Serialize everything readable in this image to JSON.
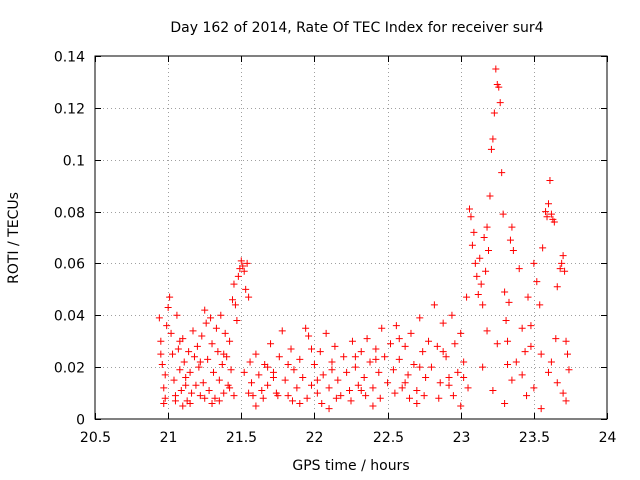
{
  "chart_data": {
    "type": "scatter",
    "title": "Day 162 of 2014, Rate Of TEC Index for receiver sur4",
    "xlabel": "GPS time / hours",
    "ylabel": "ROTI / TECUs",
    "xlim": [
      20.5,
      24
    ],
    "ylim": [
      0,
      0.14
    ],
    "xticks": [
      20.5,
      21,
      21.5,
      22,
      22.5,
      23,
      23.5,
      24
    ],
    "xtick_labels": [
      "20.5",
      "21",
      "21.5",
      "22",
      "22.5",
      "23",
      "23.5",
      "24"
    ],
    "yticks": [
      0,
      0.02,
      0.04,
      0.06,
      0.08,
      0.1,
      0.12,
      0.14
    ],
    "ytick_labels": [
      "0",
      "0.02",
      "0.04",
      "0.06",
      "0.08",
      "0.1",
      "0.12",
      "0.14"
    ],
    "grid": true,
    "marker": "plus",
    "color": "#ff0000",
    "series": [
      {
        "name": "sur4",
        "points": [
          [
            20.94,
            0.039
          ],
          [
            20.95,
            0.03
          ],
          [
            20.96,
            0.021
          ],
          [
            20.97,
            0.012
          ],
          [
            20.98,
            0.008
          ],
          [
            20.99,
            0.036
          ],
          [
            21.0,
            0.043
          ],
          [
            21.01,
            0.047
          ],
          [
            21.02,
            0.033
          ],
          [
            21.03,
            0.025
          ],
          [
            21.04,
            0.015
          ],
          [
            21.05,
            0.009
          ],
          [
            21.06,
            0.04
          ],
          [
            21.07,
            0.027
          ],
          [
            21.08,
            0.019
          ],
          [
            21.09,
            0.011
          ],
          [
            21.1,
            0.031
          ],
          [
            21.11,
            0.022
          ],
          [
            21.12,
            0.016
          ],
          [
            21.13,
            0.007
          ],
          [
            21.14,
            0.026
          ],
          [
            21.15,
            0.018
          ],
          [
            21.16,
            0.01
          ],
          [
            21.17,
            0.034
          ],
          [
            21.18,
            0.024
          ],
          [
            21.19,
            0.013
          ],
          [
            21.2,
            0.028
          ],
          [
            21.21,
            0.02
          ],
          [
            21.22,
            0.009
          ],
          [
            21.23,
            0.032
          ],
          [
            21.24,
            0.014
          ],
          [
            21.25,
            0.042
          ],
          [
            21.26,
            0.037
          ],
          [
            21.27,
            0.023
          ],
          [
            21.28,
            0.011
          ],
          [
            21.29,
            0.039
          ],
          [
            21.3,
            0.029
          ],
          [
            21.31,
            0.018
          ],
          [
            21.32,
            0.008
          ],
          [
            21.33,
            0.035
          ],
          [
            21.34,
            0.026
          ],
          [
            21.35,
            0.015
          ],
          [
            21.36,
            0.04
          ],
          [
            21.37,
            0.021
          ],
          [
            21.38,
            0.01
          ],
          [
            21.39,
            0.033
          ],
          [
            21.4,
            0.024
          ],
          [
            21.41,
            0.013
          ],
          [
            21.42,
            0.03
          ],
          [
            21.43,
            0.019
          ],
          [
            21.44,
            0.046
          ],
          [
            21.45,
            0.052
          ],
          [
            21.46,
            0.044
          ],
          [
            21.47,
            0.038
          ],
          [
            21.48,
            0.055
          ],
          [
            21.49,
            0.058
          ],
          [
            21.5,
            0.061
          ],
          [
            21.51,
            0.059
          ],
          [
            21.52,
            0.057
          ],
          [
            21.53,
            0.05
          ],
          [
            21.54,
            0.06
          ],
          [
            21.55,
            0.047
          ],
          [
            21.56,
            0.022
          ],
          [
            21.57,
            0.014
          ],
          [
            21.58,
            0.009
          ],
          [
            21.6,
            0.025
          ],
          [
            21.62,
            0.017
          ],
          [
            21.64,
            0.011
          ],
          [
            21.66,
            0.021
          ],
          [
            21.68,
            0.013
          ],
          [
            21.7,
            0.029
          ],
          [
            21.72,
            0.018
          ],
          [
            21.74,
            0.01
          ],
          [
            21.76,
            0.024
          ],
          [
            21.78,
            0.034
          ],
          [
            21.8,
            0.015
          ],
          [
            21.82,
            0.009
          ],
          [
            21.84,
            0.027
          ],
          [
            21.86,
            0.019
          ],
          [
            21.88,
            0.012
          ],
          [
            21.9,
            0.023
          ],
          [
            21.92,
            0.016
          ],
          [
            21.94,
            0.035
          ],
          [
            21.96,
            0.032
          ],
          [
            21.98,
            0.013
          ],
          [
            22.0,
            0.021
          ],
          [
            22.02,
            0.01
          ],
          [
            22.04,
            0.026
          ],
          [
            22.06,
            0.017
          ],
          [
            22.08,
            0.033
          ],
          [
            22.1,
            0.012
          ],
          [
            22.12,
            0.022
          ],
          [
            22.14,
            0.028
          ],
          [
            22.16,
            0.015
          ],
          [
            22.18,
            0.009
          ],
          [
            22.2,
            0.024
          ],
          [
            22.22,
            0.018
          ],
          [
            22.24,
            0.011
          ],
          [
            22.26,
            0.03
          ],
          [
            22.28,
            0.02
          ],
          [
            22.3,
            0.013
          ],
          [
            22.32,
            0.026
          ],
          [
            22.34,
            0.016
          ],
          [
            22.36,
            0.031
          ],
          [
            22.38,
            0.022
          ],
          [
            22.4,
            0.012
          ],
          [
            22.42,
            0.027
          ],
          [
            22.44,
            0.018
          ],
          [
            22.46,
            0.035
          ],
          [
            22.48,
            0.024
          ],
          [
            22.5,
            0.014
          ],
          [
            22.52,
            0.029
          ],
          [
            22.54,
            0.019
          ],
          [
            22.56,
            0.036
          ],
          [
            22.58,
            0.023
          ],
          [
            22.6,
            0.012
          ],
          [
            22.62,
            0.028
          ],
          [
            22.64,
            0.017
          ],
          [
            22.66,
            0.033
          ],
          [
            22.68,
            0.021
          ],
          [
            22.7,
            0.011
          ],
          [
            22.72,
            0.039
          ],
          [
            22.74,
            0.026
          ],
          [
            22.76,
            0.016
          ],
          [
            22.78,
            0.03
          ],
          [
            22.8,
            0.02
          ],
          [
            22.82,
            0.044
          ],
          [
            22.84,
            0.028
          ],
          [
            22.86,
            0.014
          ],
          [
            22.88,
            0.037
          ],
          [
            22.9,
            0.024
          ],
          [
            22.92,
            0.013
          ],
          [
            22.94,
            0.04
          ],
          [
            22.96,
            0.029
          ],
          [
            22.98,
            0.018
          ],
          [
            23.0,
            0.033
          ],
          [
            23.02,
            0.022
          ],
          [
            23.04,
            0.047
          ],
          [
            23.06,
            0.081
          ],
          [
            23.07,
            0.078
          ],
          [
            23.08,
            0.067
          ],
          [
            23.09,
            0.072
          ],
          [
            23.1,
            0.06
          ],
          [
            23.11,
            0.055
          ],
          [
            23.12,
            0.048
          ],
          [
            23.13,
            0.062
          ],
          [
            23.14,
            0.052
          ],
          [
            23.15,
            0.044
          ],
          [
            23.16,
            0.07
          ],
          [
            23.17,
            0.057
          ],
          [
            23.18,
            0.074
          ],
          [
            23.19,
            0.065
          ],
          [
            23.2,
            0.086
          ],
          [
            23.21,
            0.104
          ],
          [
            23.22,
            0.108
          ],
          [
            23.23,
            0.118
          ],
          [
            23.24,
            0.135
          ],
          [
            23.25,
            0.129
          ],
          [
            23.26,
            0.128
          ],
          [
            23.27,
            0.122
          ],
          [
            23.28,
            0.095
          ],
          [
            23.29,
            0.079
          ],
          [
            23.3,
            0.049
          ],
          [
            23.31,
            0.038
          ],
          [
            23.32,
            0.03
          ],
          [
            23.33,
            0.045
          ],
          [
            23.34,
            0.069
          ],
          [
            23.35,
            0.074
          ],
          [
            23.36,
            0.065
          ],
          [
            23.38,
            0.022
          ],
          [
            23.4,
            0.058
          ],
          [
            23.42,
            0.035
          ],
          [
            23.44,
            0.026
          ],
          [
            23.46,
            0.047
          ],
          [
            23.48,
            0.036
          ],
          [
            23.5,
            0.06
          ],
          [
            23.52,
            0.053
          ],
          [
            23.54,
            0.044
          ],
          [
            23.56,
            0.066
          ],
          [
            23.58,
            0.08
          ],
          [
            23.59,
            0.078
          ],
          [
            23.6,
            0.083
          ],
          [
            23.61,
            0.092
          ],
          [
            23.62,
            0.079
          ],
          [
            23.63,
            0.077
          ],
          [
            23.64,
            0.076
          ],
          [
            23.66,
            0.051
          ],
          [
            23.68,
            0.058
          ],
          [
            23.69,
            0.06
          ],
          [
            23.7,
            0.063
          ],
          [
            23.71,
            0.057
          ],
          [
            23.72,
            0.03
          ],
          [
            23.73,
            0.025
          ],
          [
            23.74,
            0.019
          ],
          [
            23.5,
            0.012
          ],
          [
            23.55,
            0.025
          ],
          [
            23.6,
            0.018
          ],
          [
            23.65,
            0.031
          ],
          [
            23.7,
            0.01
          ],
          [
            23.45,
            0.009
          ],
          [
            23.35,
            0.015
          ],
          [
            23.25,
            0.029
          ],
          [
            23.15,
            0.02
          ],
          [
            23.05,
            0.012
          ],
          [
            22.95,
            0.009
          ],
          [
            22.85,
            0.008
          ],
          [
            22.75,
            0.009
          ],
          [
            22.65,
            0.008
          ],
          [
            22.55,
            0.01
          ],
          [
            22.45,
            0.008
          ],
          [
            22.35,
            0.009
          ],
          [
            22.25,
            0.007
          ],
          [
            22.15,
            0.008
          ],
          [
            22.05,
            0.006
          ],
          [
            21.95,
            0.008
          ],
          [
            21.85,
            0.007
          ],
          [
            21.75,
            0.009
          ],
          [
            21.65,
            0.008
          ],
          [
            21.55,
            0.01
          ],
          [
            21.45,
            0.009
          ],
          [
            21.35,
            0.007
          ],
          [
            21.25,
            0.008
          ],
          [
            21.15,
            0.006
          ],
          [
            21.05,
            0.007
          ],
          [
            20.97,
            0.006
          ],
          [
            21.1,
            0.005
          ],
          [
            21.3,
            0.006
          ],
          [
            21.6,
            0.005
          ],
          [
            21.9,
            0.006
          ],
          [
            22.1,
            0.004
          ],
          [
            22.4,
            0.005
          ],
          [
            22.7,
            0.006
          ],
          [
            23.0,
            0.005
          ],
          [
            23.3,
            0.006
          ],
          [
            23.55,
            0.004
          ],
          [
            23.72,
            0.007
          ],
          [
            23.66,
            0.014
          ],
          [
            23.42,
            0.017
          ],
          [
            23.22,
            0.011
          ],
          [
            22.92,
            0.016
          ],
          [
            22.62,
            0.014
          ],
          [
            22.32,
            0.011
          ],
          [
            22.02,
            0.015
          ],
          [
            21.72,
            0.016
          ],
          [
            21.42,
            0.012
          ],
          [
            21.12,
            0.013
          ],
          [
            20.98,
            0.017
          ],
          [
            21.22,
            0.022
          ],
          [
            21.52,
            0.018
          ],
          [
            21.82,
            0.021
          ],
          [
            22.12,
            0.019
          ],
          [
            22.42,
            0.023
          ],
          [
            22.72,
            0.02
          ],
          [
            23.02,
            0.016
          ],
          [
            23.32,
            0.021
          ],
          [
            23.62,
            0.022
          ],
          [
            23.48,
            0.028
          ],
          [
            23.18,
            0.034
          ],
          [
            22.88,
            0.026
          ],
          [
            22.58,
            0.031
          ],
          [
            22.28,
            0.024
          ],
          [
            21.98,
            0.027
          ],
          [
            21.68,
            0.02
          ],
          [
            21.38,
            0.025
          ],
          [
            21.08,
            0.03
          ],
          [
            20.95,
            0.025
          ]
        ]
      }
    ]
  }
}
